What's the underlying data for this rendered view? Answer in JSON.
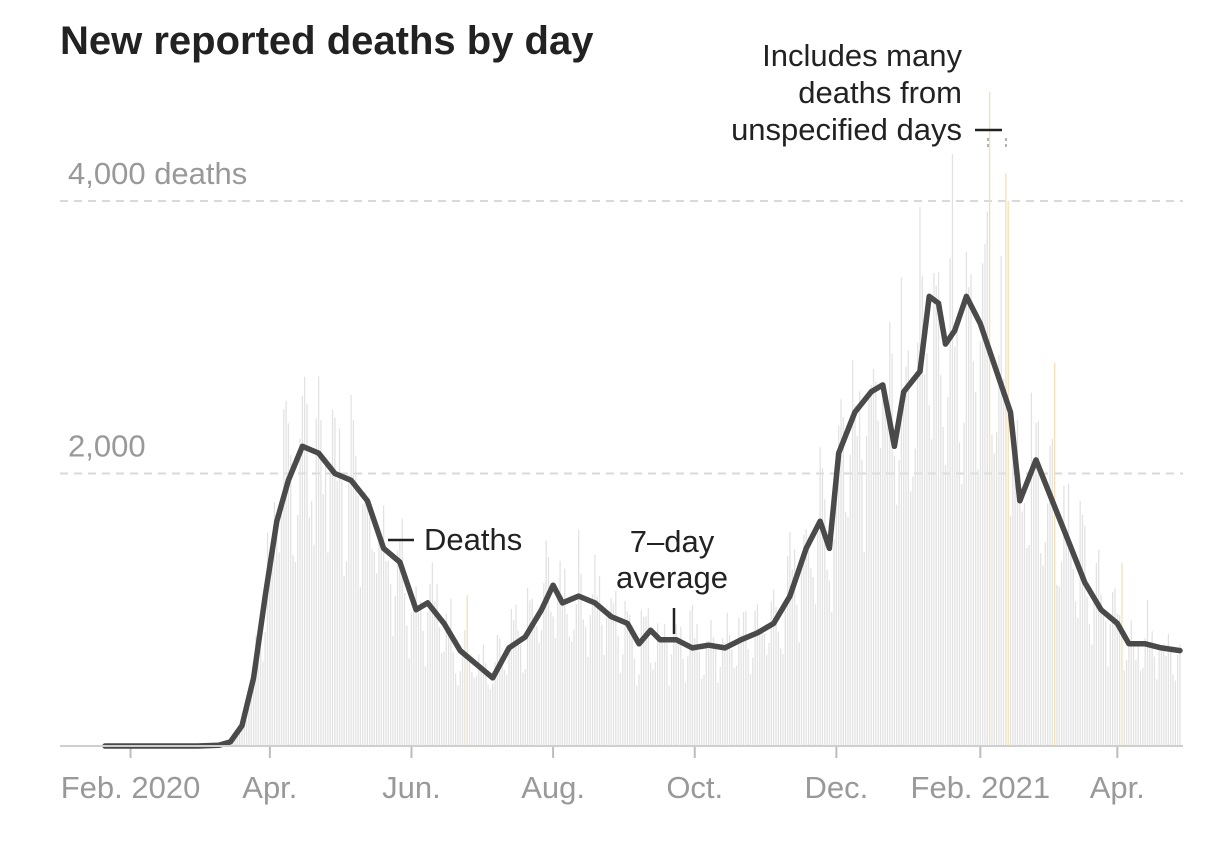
{
  "chart_data": {
    "type": "bar",
    "title": "New reported deaths by day",
    "y_ticks": [
      {
        "value": 4000,
        "label": "4,000 deaths"
      },
      {
        "value": 2000,
        "label": "2,000"
      }
    ],
    "ylim": [
      0,
      4000
    ],
    "x_range": [
      "2020-01-21",
      "2021-04-28"
    ],
    "x_ticks": [
      {
        "date": "2020-02-01",
        "label": "Feb. 2020"
      },
      {
        "date": "2020-04-01",
        "label": "Apr."
      },
      {
        "date": "2020-06-01",
        "label": "Jun."
      },
      {
        "date": "2020-08-01",
        "label": "Aug."
      },
      {
        "date": "2020-10-01",
        "label": "Oct."
      },
      {
        "date": "2020-12-01",
        "label": "Dec."
      },
      {
        "date": "2021-02-01",
        "label": "Feb. 2021"
      },
      {
        "date": "2021-04-01",
        "label": "Apr."
      }
    ],
    "grid": true,
    "series": [
      {
        "name": "Deaths",
        "kind": "daily bars",
        "color": "#e2e2e2",
        "highlight_color": "#f3dfb3",
        "values_note": "daily counts fluctuate around the 7-day average",
        "highlighted_dates": [
          "2020-06-25",
          "2021-02-05",
          "2021-02-12",
          "2021-02-13",
          "2021-03-05",
          "2021-04-03"
        ]
      },
      {
        "name": "7-day average",
        "kind": "line",
        "color": "#4a4a4a",
        "points": [
          [
            "2020-01-21",
            0
          ],
          [
            "2020-03-01",
            0
          ],
          [
            "2020-03-10",
            5
          ],
          [
            "2020-03-15",
            30
          ],
          [
            "2020-03-20",
            150
          ],
          [
            "2020-03-25",
            500
          ],
          [
            "2020-03-30",
            1100
          ],
          [
            "2020-04-04",
            1650
          ],
          [
            "2020-04-09",
            1950
          ],
          [
            "2020-04-15",
            2200
          ],
          [
            "2020-04-22",
            2150
          ],
          [
            "2020-04-29",
            2000
          ],
          [
            "2020-05-06",
            1950
          ],
          [
            "2020-05-13",
            1800
          ],
          [
            "2020-05-20",
            1450
          ],
          [
            "2020-05-27",
            1350
          ],
          [
            "2020-06-03",
            1000
          ],
          [
            "2020-06-08",
            1050
          ],
          [
            "2020-06-15",
            900
          ],
          [
            "2020-06-22",
            700
          ],
          [
            "2020-06-29",
            600
          ],
          [
            "2020-07-06",
            500
          ],
          [
            "2020-07-13",
            720
          ],
          [
            "2020-07-20",
            800
          ],
          [
            "2020-07-27",
            1000
          ],
          [
            "2020-08-01",
            1180
          ],
          [
            "2020-08-05",
            1050
          ],
          [
            "2020-08-12",
            1100
          ],
          [
            "2020-08-19",
            1050
          ],
          [
            "2020-08-26",
            950
          ],
          [
            "2020-09-02",
            900
          ],
          [
            "2020-09-07",
            750
          ],
          [
            "2020-09-12",
            850
          ],
          [
            "2020-09-16",
            780
          ],
          [
            "2020-09-23",
            780
          ],
          [
            "2020-09-30",
            720
          ],
          [
            "2020-10-07",
            740
          ],
          [
            "2020-10-14",
            720
          ],
          [
            "2020-10-21",
            780
          ],
          [
            "2020-10-28",
            830
          ],
          [
            "2020-11-04",
            900
          ],
          [
            "2020-11-11",
            1100
          ],
          [
            "2020-11-18",
            1450
          ],
          [
            "2020-11-24",
            1650
          ],
          [
            "2020-11-28",
            1450
          ],
          [
            "2020-12-02",
            2150
          ],
          [
            "2020-12-09",
            2450
          ],
          [
            "2020-12-16",
            2600
          ],
          [
            "2020-12-21",
            2650
          ],
          [
            "2020-12-26",
            2200
          ],
          [
            "2020-12-30",
            2600
          ],
          [
            "2021-01-06",
            2750
          ],
          [
            "2021-01-10",
            3300
          ],
          [
            "2021-01-14",
            3250
          ],
          [
            "2021-01-17",
            2950
          ],
          [
            "2021-01-21",
            3050
          ],
          [
            "2021-01-26",
            3300
          ],
          [
            "2021-02-01",
            3100
          ],
          [
            "2021-02-05",
            2900
          ],
          [
            "2021-02-10",
            2650
          ],
          [
            "2021-02-14",
            2450
          ],
          [
            "2021-02-18",
            1800
          ],
          [
            "2021-02-25",
            2100
          ],
          [
            "2021-03-04",
            1800
          ],
          [
            "2021-03-11",
            1500
          ],
          [
            "2021-03-18",
            1200
          ],
          [
            "2021-03-25",
            1000
          ],
          [
            "2021-04-01",
            900
          ],
          [
            "2021-04-06",
            750
          ],
          [
            "2021-04-13",
            750
          ],
          [
            "2021-04-20",
            720
          ],
          [
            "2021-04-28",
            700
          ]
        ]
      }
    ],
    "annotations": [
      {
        "lines": [
          "Includes many",
          "deaths from",
          "unspecified days"
        ],
        "date": "2021-02-08"
      },
      {
        "lines": [
          "Deaths"
        ],
        "date": "2020-05-27"
      },
      {
        "lines": [
          "7–day",
          "average"
        ],
        "date": "2020-09-15"
      }
    ]
  }
}
